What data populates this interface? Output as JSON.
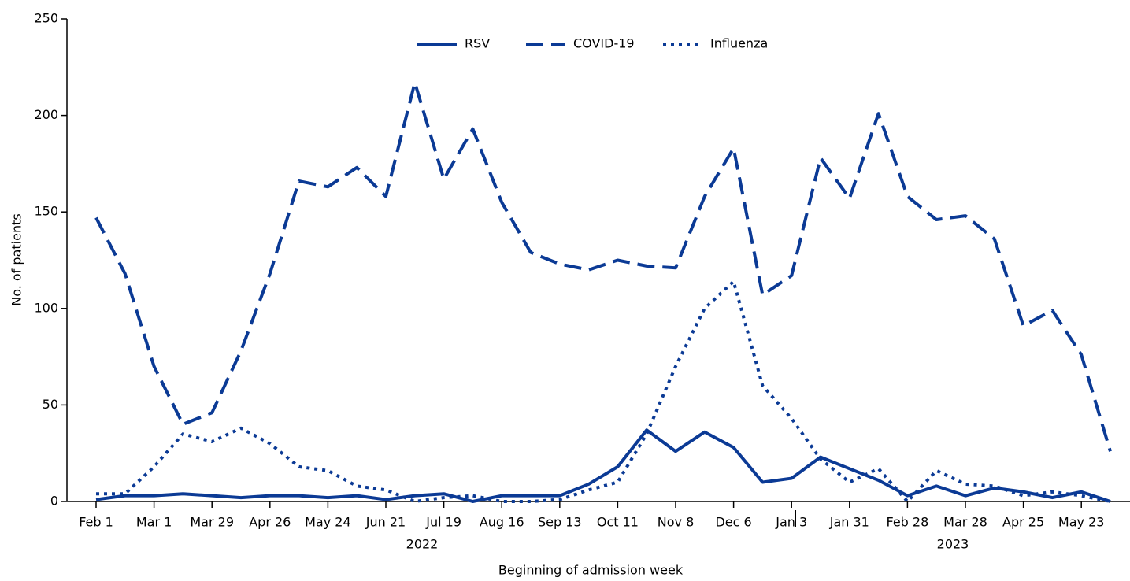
{
  "chart_data": {
    "type": "line",
    "y_label": "No. of patients",
    "x_label": "Beginning of admission week",
    "categories": [
      "Feb 1",
      null,
      "Mar 1",
      null,
      "Mar 29",
      null,
      "Apr 26",
      null,
      "May 24",
      null,
      "Jun 21",
      null,
      "Jul 19",
      null,
      "Aug 16",
      null,
      "Sep 13",
      null,
      "Oct 11",
      null,
      "Nov 8",
      null,
      "Dec 6",
      null,
      "Jan 3",
      null,
      "Jan 31",
      null,
      "Feb 28",
      null,
      "Mar 28",
      null,
      "Apr 25",
      null,
      "May 23",
      null
    ],
    "year_labels": [
      "2022",
      "2023"
    ],
    "series": [
      {
        "name": "RSV",
        "color": "#0b3a95",
        "dash": "solid",
        "values": [
          1,
          3,
          3,
          4,
          3,
          2,
          3,
          3,
          2,
          3,
          1,
          3,
          4,
          0,
          3,
          3,
          3,
          9,
          18,
          37,
          26,
          36,
          28,
          10,
          12,
          23,
          17,
          11,
          3,
          8,
          3,
          7,
          5,
          2,
          5,
          0
        ]
      },
      {
        "name": "COVID-19",
        "color": "#0b3a95",
        "dash": "dashed",
        "values": [
          147,
          118,
          70,
          40,
          46,
          78,
          118,
          166,
          163,
          173,
          158,
          217,
          167,
          193,
          155,
          129,
          123,
          120,
          125,
          122,
          121,
          158,
          183,
          107,
          117,
          178,
          157,
          201,
          158,
          146,
          148,
          136,
          91,
          99,
          76,
          26
        ]
      },
      {
        "name": "Influenza",
        "color": "#0b3a95",
        "dash": "dotted",
        "values": [
          4,
          4,
          18,
          35,
          31,
          38,
          30,
          18,
          16,
          8,
          6,
          0,
          2,
          3,
          0,
          0,
          1,
          6,
          10,
          35,
          70,
          100,
          114,
          60,
          43,
          22,
          10,
          17,
          0,
          16,
          9,
          8,
          3,
          5,
          3,
          0
        ]
      }
    ],
    "ylim": [
      0,
      250
    ],
    "yticks": [
      0,
      50,
      100,
      150,
      200,
      250
    ]
  }
}
